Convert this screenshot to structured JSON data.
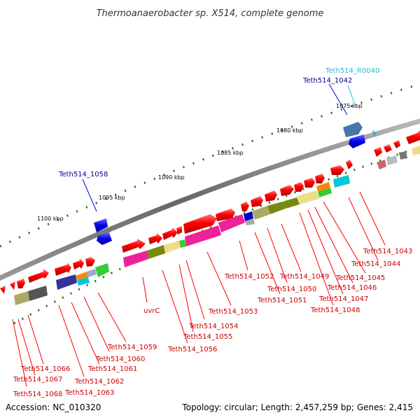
{
  "title": "Thermoanaerobacter sp. X514, complete genome",
  "footer": {
    "accession": "Accession: NC_010320",
    "topology": "Topology: circular; Length: 2,457,259 bp; Genes: 2,415"
  },
  "colors": {
    "backbone": "#777777",
    "forward_genes": "#ff0000",
    "reverse_genes": "#0000ff",
    "label_forward": "#cc0000",
    "label_reverse": "#000088",
    "label_rna": "#22bbdd",
    "ticks": "#117711"
  },
  "scale_labels": [
    "1075 kbp",
    "1080 kbp",
    "1085 kbp",
    "1090 kbp",
    "1095 kbp",
    "1100 kbp"
  ],
  "gene_labels": {
    "rna": "Teth514_R0040",
    "reverse": [
      "Teth514_1042",
      "Teth514_1058"
    ],
    "forward": [
      "Teth514_1043",
      "Teth514_1044",
      "Teth514_1045",
      "Teth514_1046",
      "Teth514_1047",
      "Teth514_1048",
      "Teth514_1049",
      "Teth514_1050",
      "Teth514_1051",
      "Teth514_1052",
      "Teth514_1053",
      "Teth514_1054",
      "Teth514_1055",
      "Teth514_1056",
      "uvrC",
      "Teth514_1059",
      "Teth514_1060",
      "Teth514_1061",
      "Teth514_1062",
      "Teth514_1063",
      "Teth514_1066",
      "Teth514_1067",
      "Teth514_1068"
    ]
  },
  "legend_icons": [
    "forward-arrow-icon",
    "reverse-arrow-icon"
  ]
}
